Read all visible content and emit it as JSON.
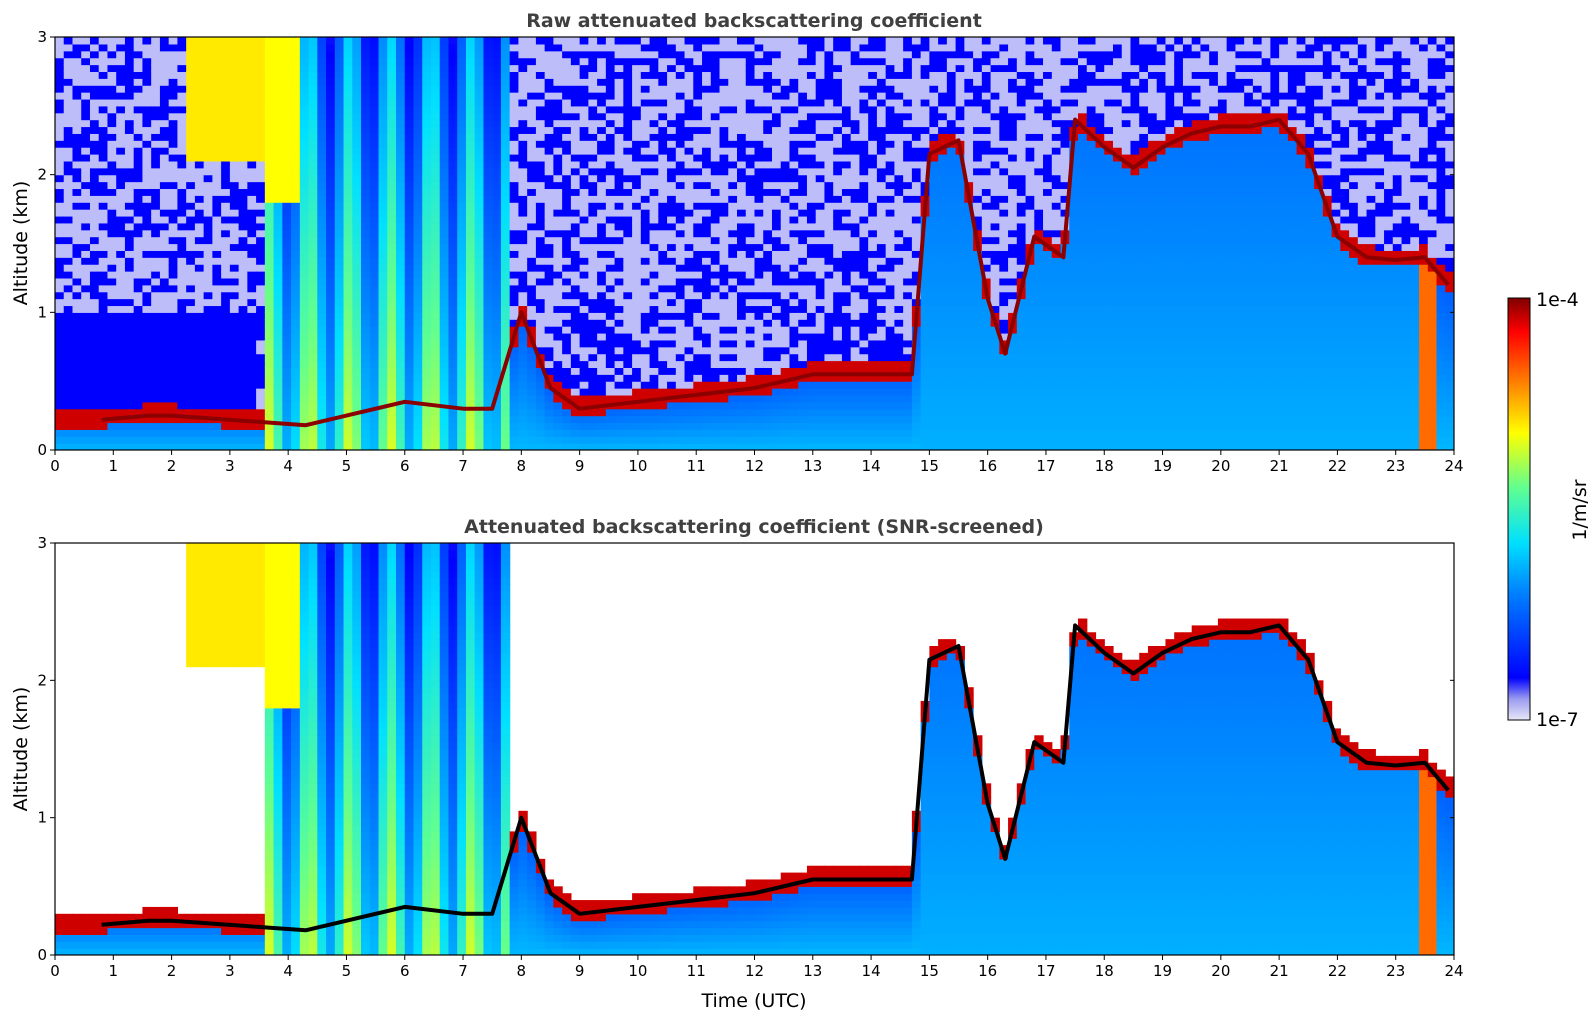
{
  "chart_data": [
    {
      "type": "heatmap",
      "title": "Raw attenuated backscattering coefficient",
      "xlabel": "",
      "ylabel": "Altitude (km)",
      "xlim": [
        0,
        24
      ],
      "ylim": [
        0,
        3
      ],
      "xticks": [
        0,
        1,
        2,
        3,
        4,
        5,
        6,
        7,
        8,
        9,
        10,
        11,
        12,
        13,
        14,
        15,
        16,
        17,
        18,
        19,
        20,
        21,
        22,
        23,
        24
      ],
      "yticks": [
        0,
        1,
        2,
        3
      ],
      "colorscale": "log",
      "clim": [
        1e-07,
        0.0001
      ],
      "cloud_layer_km": {
        "time_utc": [
          0.8,
          1.6,
          2.0,
          4.3,
          5.0,
          6.0,
          7.0,
          7.5,
          8.0,
          8.5,
          9.0,
          10.0,
          11.0,
          12.0,
          13.0,
          14.0,
          14.7,
          15.0,
          15.5,
          16.0,
          16.3,
          16.8,
          17.3,
          17.5,
          18.0,
          18.5,
          19.0,
          19.5,
          20.0,
          20.5,
          21.0,
          21.5,
          22.0,
          22.5,
          23.0,
          23.5,
          23.9
        ],
        "altitude_km": [
          0.22,
          0.25,
          0.25,
          0.18,
          0.25,
          0.35,
          0.3,
          0.3,
          1.0,
          0.45,
          0.3,
          0.35,
          0.4,
          0.45,
          0.55,
          0.55,
          0.55,
          2.15,
          2.25,
          1.1,
          0.7,
          1.55,
          1.4,
          2.4,
          2.2,
          2.05,
          2.2,
          2.3,
          2.35,
          2.35,
          2.4,
          2.15,
          1.55,
          1.4,
          1.38,
          1.4,
          1.2
        ]
      }
    },
    {
      "type": "heatmap",
      "title": "Attenuated backscattering coefficient (SNR-screened)",
      "xlabel": "Time (UTC)",
      "ylabel": "Altitude (km)",
      "xlim": [
        0,
        24
      ],
      "ylim": [
        0,
        3
      ],
      "xticks": [
        0,
        1,
        2,
        3,
        4,
        5,
        6,
        7,
        8,
        9,
        10,
        11,
        12,
        13,
        14,
        15,
        16,
        17,
        18,
        19,
        20,
        21,
        22,
        23,
        24
      ],
      "yticks": [
        0,
        1,
        2,
        3
      ],
      "colorscale": "log",
      "clim": [
        1e-07,
        0.0001
      ]
    }
  ],
  "colorbar": {
    "label": "1/m/sr",
    "max_label": "1e-4",
    "min_label": "1e-7"
  }
}
